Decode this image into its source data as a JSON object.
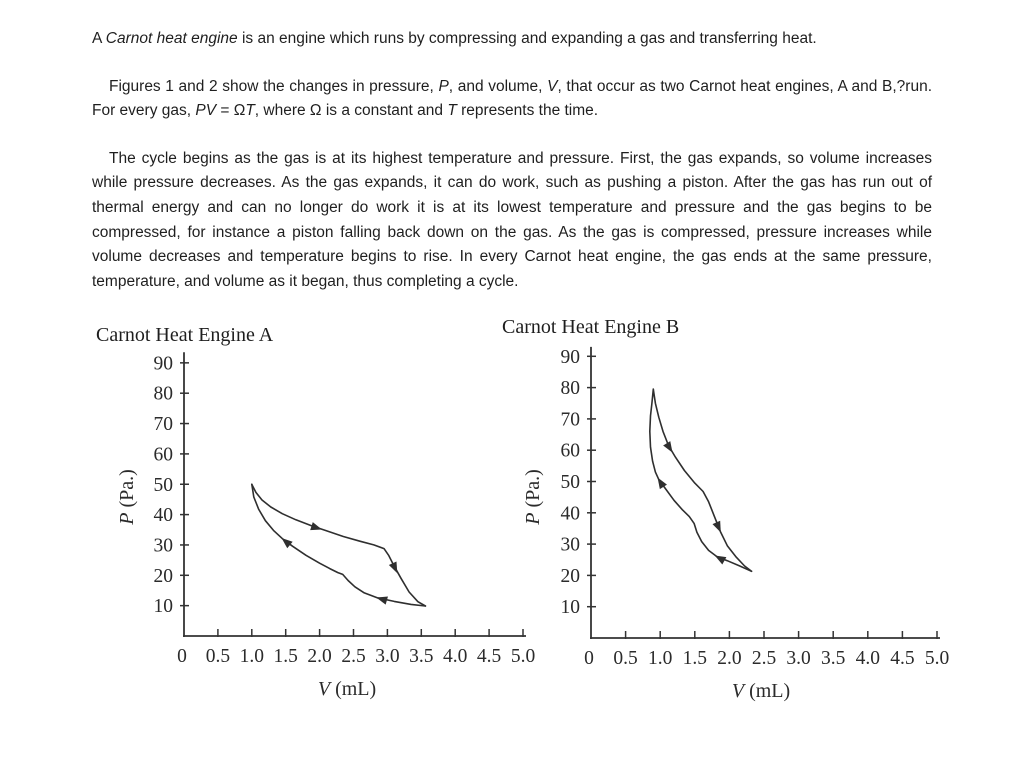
{
  "passage": {
    "paragraphs": [
      {
        "segments": [
          {
            "t": "A "
          },
          {
            "t": "Carnot heat engine",
            "i": true
          },
          {
            "t": " is an engine which runs by compressing and expanding a gas and transferring heat."
          }
        ]
      },
      {
        "segments": [
          {
            "t": "Figures 1 and 2 show the changes in pressure, "
          },
          {
            "t": "P",
            "i": true
          },
          {
            "t": ", and volume, "
          },
          {
            "t": "V",
            "i": true
          },
          {
            "t": ", that occur as two Carnot heat engines, A and B,?run. For every gas, "
          },
          {
            "t": "PV",
            "i": true
          },
          {
            "t": " = Ω"
          },
          {
            "t": "T",
            "i": true
          },
          {
            "t": ", where Ω is a constant and "
          },
          {
            "t": "T",
            "i": true
          },
          {
            "t": " represents the time."
          }
        ]
      },
      {
        "segments": [
          {
            "t": "The cycle begins as the gas is at its highest temperature and pressure. First, the gas expands, so volume increases while pressure decreases. As the gas expands, it can do work, such as pushing a piston. After the gas has run out of thermal energy and can no longer do work it is at its lowest temperature and pressure and the gas begins to be compressed, for instance a piston falling back down on the gas. As the gas is compressed, pressure increases while volume decreases and temperature begins to rise. In every Carnot heat engine, the gas ends at the same pressure, temperature, and volume as it began, thus completing a cycle."
          }
        ]
      }
    ]
  },
  "chart_data": [
    {
      "type": "line",
      "title": "Carnot Heat Engine A",
      "xlabel": "V (mL)",
      "ylabel": "P (Pa.)",
      "xlim": [
        0,
        5.0
      ],
      "ylim": [
        0,
        90
      ],
      "xticks": [
        0,
        0.5,
        1.0,
        1.5,
        2.0,
        2.5,
        3.0,
        3.5,
        4.0,
        4.5,
        5.0
      ],
      "xtick_labels": [
        "0",
        "0.5",
        "1.0",
        "1.5",
        "2.0",
        "2.5",
        "3.0",
        "3.5",
        "4.0",
        "4.5",
        "5.0"
      ],
      "yticks": [
        10,
        20,
        30,
        40,
        50,
        60,
        70,
        80,
        90
      ],
      "grid": false,
      "series": [
        {
          "name": "expansion path (upper curve, V increasing)",
          "points": [
            [
              1.0,
              50
            ],
            [
              1.06,
              47.3
            ],
            [
              1.15,
              44.8
            ],
            [
              1.28,
              42.5
            ],
            [
              1.45,
              40.3
            ],
            [
              1.65,
              38.3
            ],
            [
              1.88,
              36.3
            ],
            [
              2.1,
              34.7
            ],
            [
              2.35,
              32.8
            ],
            [
              2.6,
              31.2
            ],
            [
              2.8,
              30.0
            ],
            [
              2.95,
              28.8
            ],
            [
              3.02,
              26.5
            ],
            [
              3.1,
              23.0
            ],
            [
              3.2,
              19.0
            ],
            [
              3.32,
              14.5
            ],
            [
              3.45,
              11.3
            ],
            [
              3.56,
              9.9
            ]
          ]
        },
        {
          "name": "compression path (lower curve, V decreasing)",
          "points": [
            [
              3.56,
              9.9
            ],
            [
              3.35,
              10.4
            ],
            [
              3.1,
              11.4
            ],
            [
              2.85,
              12.6
            ],
            [
              2.66,
              14.2
            ],
            [
              2.52,
              16.2
            ],
            [
              2.42,
              18.3
            ],
            [
              2.34,
              20.3
            ],
            [
              2.27,
              20.9
            ],
            [
              2.15,
              22.2
            ],
            [
              2.0,
              24.0
            ],
            [
              1.8,
              26.6
            ],
            [
              1.6,
              29.6
            ],
            [
              1.45,
              32.1
            ],
            [
              1.32,
              34.8
            ],
            [
              1.2,
              38.0
            ],
            [
              1.1,
              41.8
            ],
            [
              1.03,
              45.8
            ],
            [
              1.0,
              50
            ]
          ]
        }
      ],
      "arrows": [
        {
          "v": 2.02,
          "p": 35.2,
          "angle": 18
        },
        {
          "v": 3.14,
          "p": 21.0,
          "angle": 65
        },
        {
          "v": 2.85,
          "p": 12.6,
          "angle": 196
        },
        {
          "v": 1.45,
          "p": 32.1,
          "angle": 220
        }
      ]
    },
    {
      "type": "line",
      "title": "Carnot Heat Engine B",
      "xlabel": "V (mL)",
      "ylabel": "P (Pa.)",
      "xlim": [
        0,
        5.0
      ],
      "ylim": [
        0,
        90
      ],
      "xticks": [
        0,
        0.5,
        1.0,
        1.5,
        2.0,
        2.5,
        3.0,
        3.5,
        4.0,
        4.5,
        5.0
      ],
      "xtick_labels": [
        "0",
        "0.5",
        "1.0",
        "1.5",
        "2.0",
        "2.5",
        "3.0",
        "3.5",
        "4.0",
        "4.5",
        "5.0"
      ],
      "yticks": [
        10,
        20,
        30,
        40,
        50,
        60,
        70,
        80,
        90
      ],
      "grid": false,
      "series": [
        {
          "name": "expansion path (right curve, V increasing)",
          "points": [
            [
              0.9,
              79.5
            ],
            [
              0.93,
              75.0
            ],
            [
              0.98,
              70.5
            ],
            [
              1.04,
              66.0
            ],
            [
              1.12,
              61.5
            ],
            [
              1.22,
              57.8
            ],
            [
              1.35,
              53.5
            ],
            [
              1.5,
              49.5
            ],
            [
              1.62,
              46.8
            ],
            [
              1.7,
              43.5
            ],
            [
              1.78,
              39.0
            ],
            [
              1.87,
              34.0
            ],
            [
              1.97,
              29.5
            ],
            [
              2.1,
              25.8
            ],
            [
              2.22,
              23.0
            ],
            [
              2.32,
              21.3
            ]
          ]
        },
        {
          "name": "compression path (left curve, V decreasing)",
          "points": [
            [
              2.32,
              21.3
            ],
            [
              2.15,
              23.0
            ],
            [
              1.97,
              24.7
            ],
            [
              1.82,
              26.0
            ],
            [
              1.7,
              28.0
            ],
            [
              1.6,
              30.8
            ],
            [
              1.53,
              33.8
            ],
            [
              1.49,
              36.6
            ],
            [
              1.42,
              38.8
            ],
            [
              1.32,
              41.0
            ],
            [
              1.2,
              44.0
            ],
            [
              1.08,
              47.6
            ],
            [
              0.98,
              50.6
            ],
            [
              0.93,
              53.0
            ],
            [
              0.89,
              56.5
            ],
            [
              0.86,
              61.0
            ],
            [
              0.85,
              66.0
            ],
            [
              0.86,
              71.0
            ],
            [
              0.88,
              75.0
            ],
            [
              0.9,
              79.5
            ]
          ]
        }
      ],
      "arrows": [
        {
          "v": 1.17,
          "p": 59.5,
          "angle": 58
        },
        {
          "v": 1.87,
          "p": 34.0,
          "angle": 66
        },
        {
          "v": 1.8,
          "p": 26.2,
          "angle": 209
        },
        {
          "v": 0.97,
          "p": 51.0,
          "angle": 238
        }
      ]
    }
  ]
}
